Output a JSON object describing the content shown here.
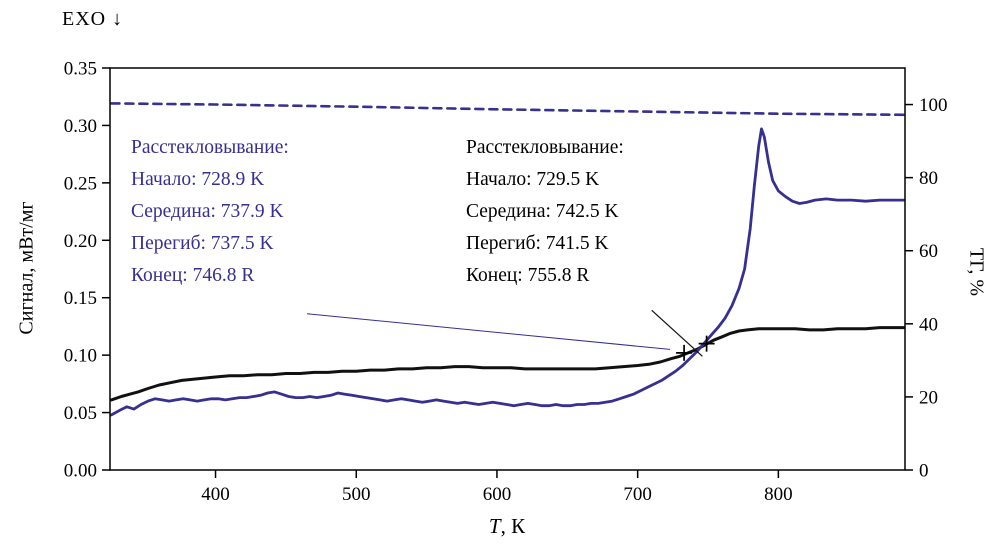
{
  "labels": {
    "exo": "EXO ↓",
    "x_var": "T",
    "x_unit": ", К"
  },
  "colors": {
    "blue": "#372f91",
    "black": "#111111"
  },
  "annotations": {
    "blue": {
      "title": "Расстекловывание:",
      "lines": [
        "Начало: 728.9 K",
        "Середина: 737.9 K",
        "Перегиб: 737.5 K",
        "Конец: 746.8 R"
      ]
    },
    "black": {
      "title": "Расстекловывание:",
      "lines": [
        "Начало: 729.5 K",
        "Середина: 742.5 K",
        "Перегиб: 741.5 K",
        "Конец: 755.8 R"
      ]
    }
  },
  "chart_data": {
    "type": "line",
    "title": "",
    "xlabel": "T, К",
    "ylabel_left": "Сигнал, мВт/мг",
    "ylabel_right": "ТГ, %",
    "xlim": [
      325,
      890
    ],
    "ylim_left": [
      0,
      0.35
    ],
    "ylim_right_frame": [
      0,
      110
    ],
    "xticks": [
      "400",
      "500",
      "600",
      "700",
      "800"
    ],
    "yticks_left": [
      "0.00",
      "0.05",
      "0.10",
      "0.15",
      "0.20",
      "0.25",
      "0.30",
      "0.35"
    ],
    "yticks_right": [
      "0",
      "20",
      "40",
      "60",
      "80",
      "100"
    ],
    "grid": false,
    "legend": "none",
    "series": [
      {
        "name": "tg-dashed",
        "axis": "right",
        "color": "blue",
        "width": 2.6,
        "dash": "8 6",
        "points": [
          [
            326,
            100.3
          ],
          [
            400,
            100.0
          ],
          [
            500,
            99.4
          ],
          [
            600,
            98.7
          ],
          [
            700,
            98.1
          ],
          [
            800,
            97.5
          ],
          [
            889,
            97.2
          ]
        ]
      },
      {
        "name": "dsc-black",
        "axis": "left",
        "color": "black",
        "width": 3,
        "dash": "",
        "points": [
          [
            326,
            0.061
          ],
          [
            333,
            0.064
          ],
          [
            339,
            0.066
          ],
          [
            345,
            0.068
          ],
          [
            352,
            0.071
          ],
          [
            360,
            0.074
          ],
          [
            368,
            0.076
          ],
          [
            376,
            0.078
          ],
          [
            384,
            0.079
          ],
          [
            392,
            0.08
          ],
          [
            400,
            0.081
          ],
          [
            410,
            0.082
          ],
          [
            420,
            0.082
          ],
          [
            430,
            0.083
          ],
          [
            440,
            0.083
          ],
          [
            450,
            0.084
          ],
          [
            460,
            0.084
          ],
          [
            470,
            0.085
          ],
          [
            480,
            0.085
          ],
          [
            490,
            0.086
          ],
          [
            500,
            0.086
          ],
          [
            510,
            0.087
          ],
          [
            520,
            0.087
          ],
          [
            530,
            0.088
          ],
          [
            540,
            0.088
          ],
          [
            550,
            0.089
          ],
          [
            560,
            0.089
          ],
          [
            570,
            0.09
          ],
          [
            580,
            0.09
          ],
          [
            590,
            0.089
          ],
          [
            600,
            0.089
          ],
          [
            610,
            0.089
          ],
          [
            620,
            0.088
          ],
          [
            630,
            0.088
          ],
          [
            640,
            0.088
          ],
          [
            650,
            0.088
          ],
          [
            660,
            0.088
          ],
          [
            670,
            0.088
          ],
          [
            680,
            0.089
          ],
          [
            690,
            0.09
          ],
          [
            700,
            0.091
          ],
          [
            708,
            0.092
          ],
          [
            716,
            0.094
          ],
          [
            724,
            0.097
          ],
          [
            730,
            0.099
          ],
          [
            736,
            0.102
          ],
          [
            742,
            0.105
          ],
          [
            748,
            0.109
          ],
          [
            754,
            0.113
          ],
          [
            760,
            0.116
          ],
          [
            766,
            0.119
          ],
          [
            772,
            0.121
          ],
          [
            778,
            0.122
          ],
          [
            786,
            0.123
          ],
          [
            794,
            0.123
          ],
          [
            802,
            0.123
          ],
          [
            812,
            0.123
          ],
          [
            822,
            0.122
          ],
          [
            832,
            0.122
          ],
          [
            842,
            0.123
          ],
          [
            852,
            0.123
          ],
          [
            862,
            0.123
          ],
          [
            872,
            0.124
          ],
          [
            880,
            0.124
          ],
          [
            889,
            0.124
          ]
        ]
      },
      {
        "name": "dsc-blue",
        "axis": "left",
        "color": "blue",
        "width": 2.8,
        "dash": "",
        "points": [
          [
            326,
            0.048
          ],
          [
            332,
            0.052
          ],
          [
            337,
            0.055
          ],
          [
            342,
            0.053
          ],
          [
            347,
            0.057
          ],
          [
            352,
            0.06
          ],
          [
            357,
            0.062
          ],
          [
            362,
            0.061
          ],
          [
            367,
            0.06
          ],
          [
            372,
            0.061
          ],
          [
            377,
            0.062
          ],
          [
            382,
            0.061
          ],
          [
            387,
            0.06
          ],
          [
            392,
            0.061
          ],
          [
            397,
            0.062
          ],
          [
            402,
            0.062
          ],
          [
            407,
            0.061
          ],
          [
            412,
            0.062
          ],
          [
            417,
            0.063
          ],
          [
            422,
            0.063
          ],
          [
            427,
            0.064
          ],
          [
            432,
            0.065
          ],
          [
            437,
            0.067
          ],
          [
            442,
            0.068
          ],
          [
            447,
            0.066
          ],
          [
            452,
            0.064
          ],
          [
            457,
            0.063
          ],
          [
            462,
            0.063
          ],
          [
            467,
            0.064
          ],
          [
            472,
            0.063
          ],
          [
            477,
            0.064
          ],
          [
            482,
            0.065
          ],
          [
            487,
            0.067
          ],
          [
            492,
            0.066
          ],
          [
            497,
            0.065
          ],
          [
            502,
            0.064
          ],
          [
            507,
            0.063
          ],
          [
            512,
            0.062
          ],
          [
            517,
            0.061
          ],
          [
            522,
            0.06
          ],
          [
            527,
            0.061
          ],
          [
            532,
            0.062
          ],
          [
            537,
            0.061
          ],
          [
            542,
            0.06
          ],
          [
            547,
            0.059
          ],
          [
            552,
            0.06
          ],
          [
            557,
            0.061
          ],
          [
            562,
            0.06
          ],
          [
            567,
            0.059
          ],
          [
            572,
            0.058
          ],
          [
            577,
            0.059
          ],
          [
            582,
            0.058
          ],
          [
            587,
            0.057
          ],
          [
            592,
            0.058
          ],
          [
            597,
            0.059
          ],
          [
            602,
            0.058
          ],
          [
            607,
            0.057
          ],
          [
            612,
            0.056
          ],
          [
            617,
            0.057
          ],
          [
            622,
            0.058
          ],
          [
            627,
            0.057
          ],
          [
            632,
            0.056
          ],
          [
            637,
            0.056
          ],
          [
            642,
            0.057
          ],
          [
            647,
            0.056
          ],
          [
            652,
            0.056
          ],
          [
            657,
            0.057
          ],
          [
            662,
            0.057
          ],
          [
            667,
            0.058
          ],
          [
            672,
            0.058
          ],
          [
            677,
            0.059
          ],
          [
            682,
            0.06
          ],
          [
            687,
            0.062
          ],
          [
            692,
            0.064
          ],
          [
            697,
            0.066
          ],
          [
            702,
            0.069
          ],
          [
            707,
            0.072
          ],
          [
            712,
            0.075
          ],
          [
            717,
            0.078
          ],
          [
            722,
            0.082
          ],
          [
            727,
            0.086
          ],
          [
            732,
            0.091
          ],
          [
            737,
            0.097
          ],
          [
            742,
            0.103
          ],
          [
            747,
            0.11
          ],
          [
            752,
            0.117
          ],
          [
            757,
            0.124
          ],
          [
            762,
            0.132
          ],
          [
            767,
            0.143
          ],
          [
            772,
            0.158
          ],
          [
            776,
            0.175
          ],
          [
            780,
            0.21
          ],
          [
            783,
            0.248
          ],
          [
            786,
            0.282
          ],
          [
            788,
            0.297
          ],
          [
            790,
            0.29
          ],
          [
            793,
            0.268
          ],
          [
            796,
            0.252
          ],
          [
            800,
            0.243
          ],
          [
            805,
            0.238
          ],
          [
            810,
            0.234
          ],
          [
            815,
            0.232
          ],
          [
            820,
            0.233
          ],
          [
            826,
            0.235
          ],
          [
            834,
            0.236
          ],
          [
            842,
            0.235
          ],
          [
            852,
            0.235
          ],
          [
            862,
            0.234
          ],
          [
            872,
            0.235
          ],
          [
            882,
            0.235
          ],
          [
            889,
            0.235
          ]
        ]
      }
    ],
    "guide_lines": [
      {
        "color": "blue",
        "width": 1,
        "from": [
          465,
          0.136
        ],
        "to": [
          723,
          0.105
        ]
      },
      {
        "color": "black",
        "width": 1.2,
        "from": [
          710,
          0.139
        ],
        "to": [
          746,
          0.099
        ]
      }
    ],
    "markers": [
      {
        "t": 733,
        "s": 0.102
      },
      {
        "t": 749,
        "s": 0.11
      }
    ]
  }
}
